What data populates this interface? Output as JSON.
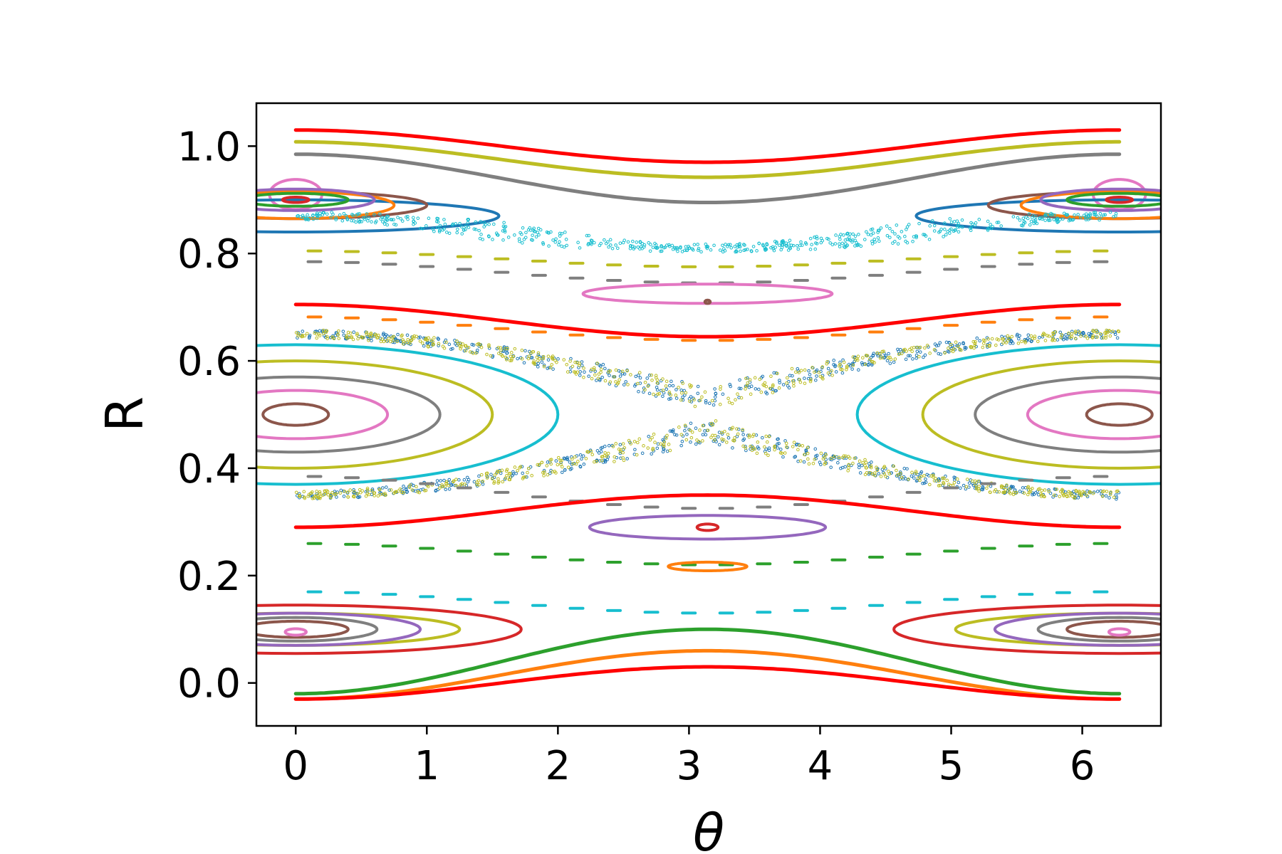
{
  "chart_data": {
    "type": "scatter",
    "title": "",
    "xlabel": "θ",
    "ylabel": "R",
    "xlim": [
      -0.3,
      6.6
    ],
    "ylim": [
      -0.08,
      1.08
    ],
    "xticks": [
      0,
      1,
      2,
      3,
      4,
      5,
      6
    ],
    "xtick_labels": [
      "0",
      "1",
      "2",
      "3",
      "4",
      "5",
      "6"
    ],
    "yticks": [
      0.0,
      0.2,
      0.4,
      0.6,
      0.8,
      1.0
    ],
    "ytick_labels": [
      "0.0",
      "0.2",
      "0.4",
      "0.6",
      "0.8",
      "1.0"
    ],
    "grid": false,
    "legend": "none",
    "colors": {
      "blue": "#1f77b4",
      "orange": "#ff7f0e",
      "green": "#2ca02c",
      "red": "#d62728",
      "purple": "#9467bd",
      "brown": "#8c564b",
      "pink": "#e377c2",
      "gray": "#7f7f7f",
      "olive": "#bcbd22",
      "cyan": "#17becf",
      "bright_red": "#ff0000"
    },
    "series": [
      {
        "kind": "curve",
        "color": "#ff0000",
        "base": 1.0,
        "amp": 0.03,
        "phase": 0
      },
      {
        "kind": "curve",
        "color": "#bcbd22",
        "base": 0.975,
        "amp": 0.033,
        "phase": 0
      },
      {
        "kind": "curve",
        "color": "#7f7f7f",
        "base": 0.94,
        "amp": 0.045,
        "phase": 0
      },
      {
        "kind": "island",
        "color": "#e377c2",
        "cy": 0.91,
        "half_width": 0.2,
        "ry": 0.028
      },
      {
        "kind": "island",
        "color": "#1f77b4",
        "cy": 0.87,
        "half_width": 1.55,
        "ry": 0.03
      },
      {
        "kind": "island",
        "color": "#8c564b",
        "cy": 0.89,
        "half_width": 1.0,
        "ry": 0.025
      },
      {
        "kind": "island",
        "color": "#ff7f0e",
        "cy": 0.89,
        "half_width": 0.75,
        "ry": 0.025
      },
      {
        "kind": "island",
        "color": "#9467bd",
        "cy": 0.9,
        "half_width": 0.6,
        "ry": 0.02
      },
      {
        "kind": "island",
        "color": "#2ca02c",
        "cy": 0.9,
        "half_width": 0.4,
        "ry": 0.012
      },
      {
        "kind": "island",
        "color": "#d62728",
        "cy": 0.9,
        "half_width": 0.1,
        "ry": 0.005
      },
      {
        "kind": "chaos",
        "color": "#17becf",
        "base": 0.84,
        "amp": 0.03,
        "spread": 0.025
      },
      {
        "kind": "chain",
        "color": "#bcbd22",
        "base": 0.79,
        "amp": 0.015
      },
      {
        "kind": "chain",
        "color": "#7f7f7f",
        "base": 0.765,
        "amp": 0.02
      },
      {
        "kind": "island",
        "color": "#e377c2",
        "cy": 0.725,
        "half_width": 0.95,
        "ry": 0.018
      },
      {
        "kind": "island",
        "color": "#8c564b",
        "cy": 0.71,
        "half_width": 0.02,
        "ry": 0.003
      },
      {
        "kind": "curve",
        "color": "#ff0000",
        "base": 0.675,
        "amp": 0.03,
        "phase": 0
      },
      {
        "kind": "chain",
        "color": "#ff7f0e",
        "base": 0.66,
        "amp": 0.022
      },
      {
        "kind": "separatrix",
        "color": "#1f77b4",
        "center": 0.5,
        "amp": 0.15
      },
      {
        "kind": "separatrix",
        "color": "#bcbd22",
        "center": 0.5,
        "amp": 0.15
      },
      {
        "kind": "island",
        "color": "#17becf",
        "cy": 0.5,
        "half_width": 2.0,
        "ry": 0.13
      },
      {
        "kind": "island",
        "color": "#bcbd22",
        "cy": 0.5,
        "half_width": 1.5,
        "ry": 0.1
      },
      {
        "kind": "island",
        "color": "#7f7f7f",
        "cy": 0.5,
        "half_width": 1.1,
        "ry": 0.07
      },
      {
        "kind": "island",
        "color": "#e377c2",
        "cy": 0.5,
        "half_width": 0.7,
        "ry": 0.045
      },
      {
        "kind": "island",
        "color": "#8c564b",
        "cy": 0.5,
        "half_width": 0.25,
        "ry": 0.02
      },
      {
        "kind": "chain",
        "color": "#7f7f7f",
        "base": 0.355,
        "amp": 0.03
      },
      {
        "kind": "curve",
        "color": "#ff0000",
        "base": 0.32,
        "amp": -0.03,
        "phase": 0
      },
      {
        "kind": "island",
        "color": "#9467bd",
        "cy": 0.29,
        "half_width": 0.9,
        "ry": 0.022
      },
      {
        "kind": "island",
        "color": "#d62728",
        "cy": 0.29,
        "half_width": 0.08,
        "ry": 0.006
      },
      {
        "kind": "chain",
        "color": "#2ca02c",
        "base": 0.24,
        "amp": 0.02
      },
      {
        "kind": "island",
        "color": "#ff7f0e",
        "cy": 0.217,
        "half_width": 0.3,
        "ry": 0.008
      },
      {
        "kind": "curve",
        "color": "#2ca02c",
        "base": 0.04,
        "amp": -0.06,
        "phase": 0
      },
      {
        "kind": "curve",
        "color": "#ff7f0e",
        "base": 0.015,
        "amp": -0.045,
        "phase": 0
      },
      {
        "kind": "curve",
        "color": "#ff0000",
        "base": 0.0,
        "amp": -0.03,
        "phase": 0
      },
      {
        "kind": "island",
        "color": "#d62728",
        "cy": 0.1,
        "half_width": 1.72,
        "ry": 0.045
      },
      {
        "kind": "island",
        "color": "#bcbd22",
        "cy": 0.1,
        "half_width": 1.25,
        "ry": 0.03
      },
      {
        "kind": "island",
        "color": "#9467bd",
        "cy": 0.1,
        "half_width": 0.95,
        "ry": 0.03
      },
      {
        "kind": "island",
        "color": "#7f7f7f",
        "cy": 0.1,
        "half_width": 0.62,
        "ry": 0.022
      },
      {
        "kind": "island",
        "color": "#8c564b",
        "cy": 0.1,
        "half_width": 0.4,
        "ry": 0.015
      },
      {
        "kind": "island",
        "color": "#e377c2",
        "cy": 0.095,
        "half_width": 0.08,
        "ry": 0.006
      },
      {
        "kind": "chain",
        "color": "#17becf",
        "base": 0.15,
        "amp": 0.02
      }
    ]
  }
}
